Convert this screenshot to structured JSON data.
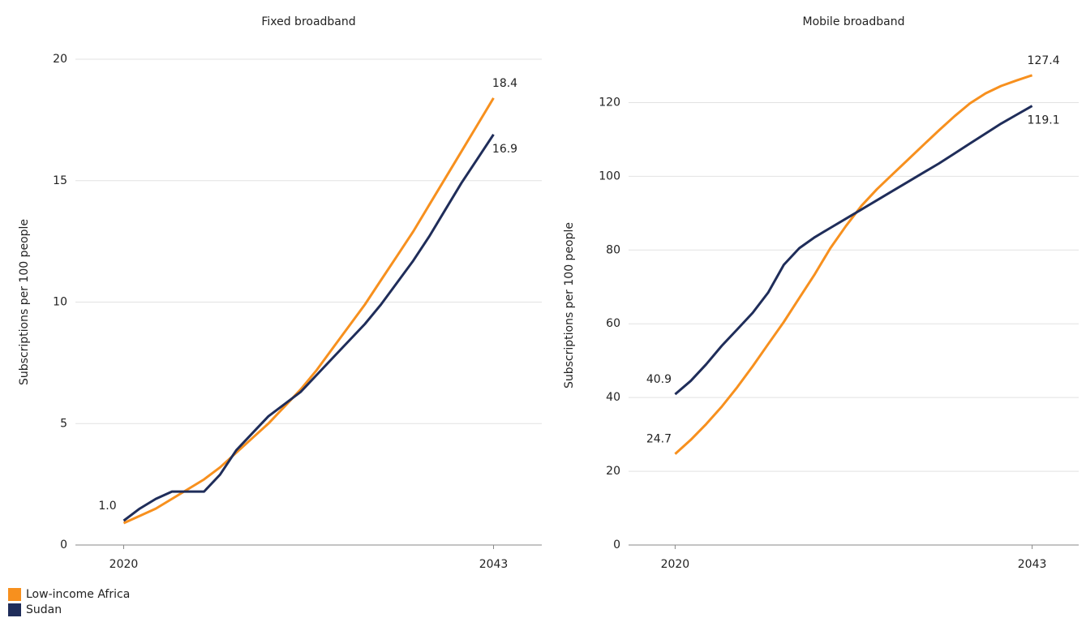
{
  "chart_data": [
    {
      "type": "line",
      "title": "Fixed broadband",
      "y_label": "Subscriptions per 100 people",
      "x": [
        2020,
        2021,
        2022,
        2023,
        2024,
        2025,
        2026,
        2027,
        2028,
        2029,
        2030,
        2031,
        2032,
        2033,
        2034,
        2035,
        2036,
        2037,
        2038,
        2039,
        2040,
        2041,
        2042,
        2043
      ],
      "xlim": [
        2017,
        2046
      ],
      "xticks": [
        2020,
        2043
      ],
      "ylim": [
        0,
        20
      ],
      "yticks": [
        0,
        5,
        10,
        15,
        20
      ],
      "grid": true,
      "series": [
        {
          "name": "Low-income Africa",
          "color": "#f7901e",
          "values": [
            0.9,
            1.2,
            1.5,
            1.9,
            2.3,
            2.7,
            3.2,
            3.8,
            4.4,
            5.0,
            5.7,
            6.4,
            7.2,
            8.1,
            9.0,
            9.9,
            10.9,
            11.9,
            12.9,
            14.0,
            15.1,
            16.2,
            17.3,
            18.4
          ],
          "value_labels": [
            null,
            null,
            null,
            null,
            null,
            null,
            null,
            null,
            null,
            null,
            null,
            null,
            null,
            null,
            null,
            null,
            null,
            null,
            null,
            null,
            null,
            null,
            null,
            "18.4"
          ]
        },
        {
          "name": "Sudan",
          "color": "#1f2d5a",
          "values": [
            1.0,
            1.5,
            1.9,
            2.2,
            2.2,
            2.2,
            2.9,
            3.9,
            4.6,
            5.3,
            5.8,
            6.3,
            7.0,
            7.7,
            8.4,
            9.1,
            9.9,
            10.8,
            11.7,
            12.7,
            13.8,
            14.9,
            15.9,
            16.9
          ],
          "value_labels": [
            "1.0",
            null,
            null,
            null,
            null,
            null,
            null,
            null,
            null,
            null,
            null,
            null,
            null,
            null,
            null,
            null,
            null,
            null,
            null,
            null,
            null,
            null,
            null,
            "16.9"
          ]
        }
      ]
    },
    {
      "type": "line",
      "title": "Mobile broadband",
      "y_label": "Subscriptions per 100 people",
      "x": [
        2020,
        2021,
        2022,
        2023,
        2024,
        2025,
        2026,
        2027,
        2028,
        2029,
        2030,
        2031,
        2032,
        2033,
        2034,
        2035,
        2036,
        2037,
        2038,
        2039,
        2040,
        2041,
        2042,
        2043
      ],
      "xlim": [
        2017,
        2046
      ],
      "xticks": [
        2020,
        2043
      ],
      "ylim": [
        0,
        130
      ],
      "yticks": [
        0,
        20,
        40,
        60,
        80,
        100,
        120
      ],
      "grid": true,
      "series": [
        {
          "name": "Low-income Africa",
          "color": "#f7901e",
          "values": [
            24.7,
            28.5,
            32.8,
            37.5,
            42.8,
            48.5,
            54.5,
            60.5,
            67,
            73.5,
            80.5,
            86.5,
            92,
            96.5,
            100.5,
            104.5,
            108.5,
            112.5,
            116.3,
            119.8,
            122.5,
            124.5,
            126,
            127.4
          ],
          "value_labels": [
            "24.7",
            null,
            null,
            null,
            null,
            null,
            null,
            null,
            null,
            null,
            null,
            null,
            null,
            null,
            null,
            null,
            null,
            null,
            null,
            null,
            null,
            null,
            null,
            "127.4"
          ]
        },
        {
          "name": "Sudan",
          "color": "#1f2d5a",
          "values": [
            40.9,
            44.5,
            49,
            54,
            58.5,
            63,
            68.5,
            76,
            80.5,
            83.5,
            86,
            88.5,
            91,
            93.5,
            96,
            98.5,
            101,
            103.5,
            106.2,
            108.9,
            111.6,
            114.3,
            116.7,
            119.1
          ],
          "value_labels": [
            "40.9",
            null,
            null,
            null,
            null,
            null,
            null,
            null,
            null,
            null,
            null,
            null,
            null,
            null,
            null,
            null,
            null,
            null,
            null,
            null,
            null,
            null,
            null,
            "119.1"
          ]
        }
      ]
    }
  ]
}
